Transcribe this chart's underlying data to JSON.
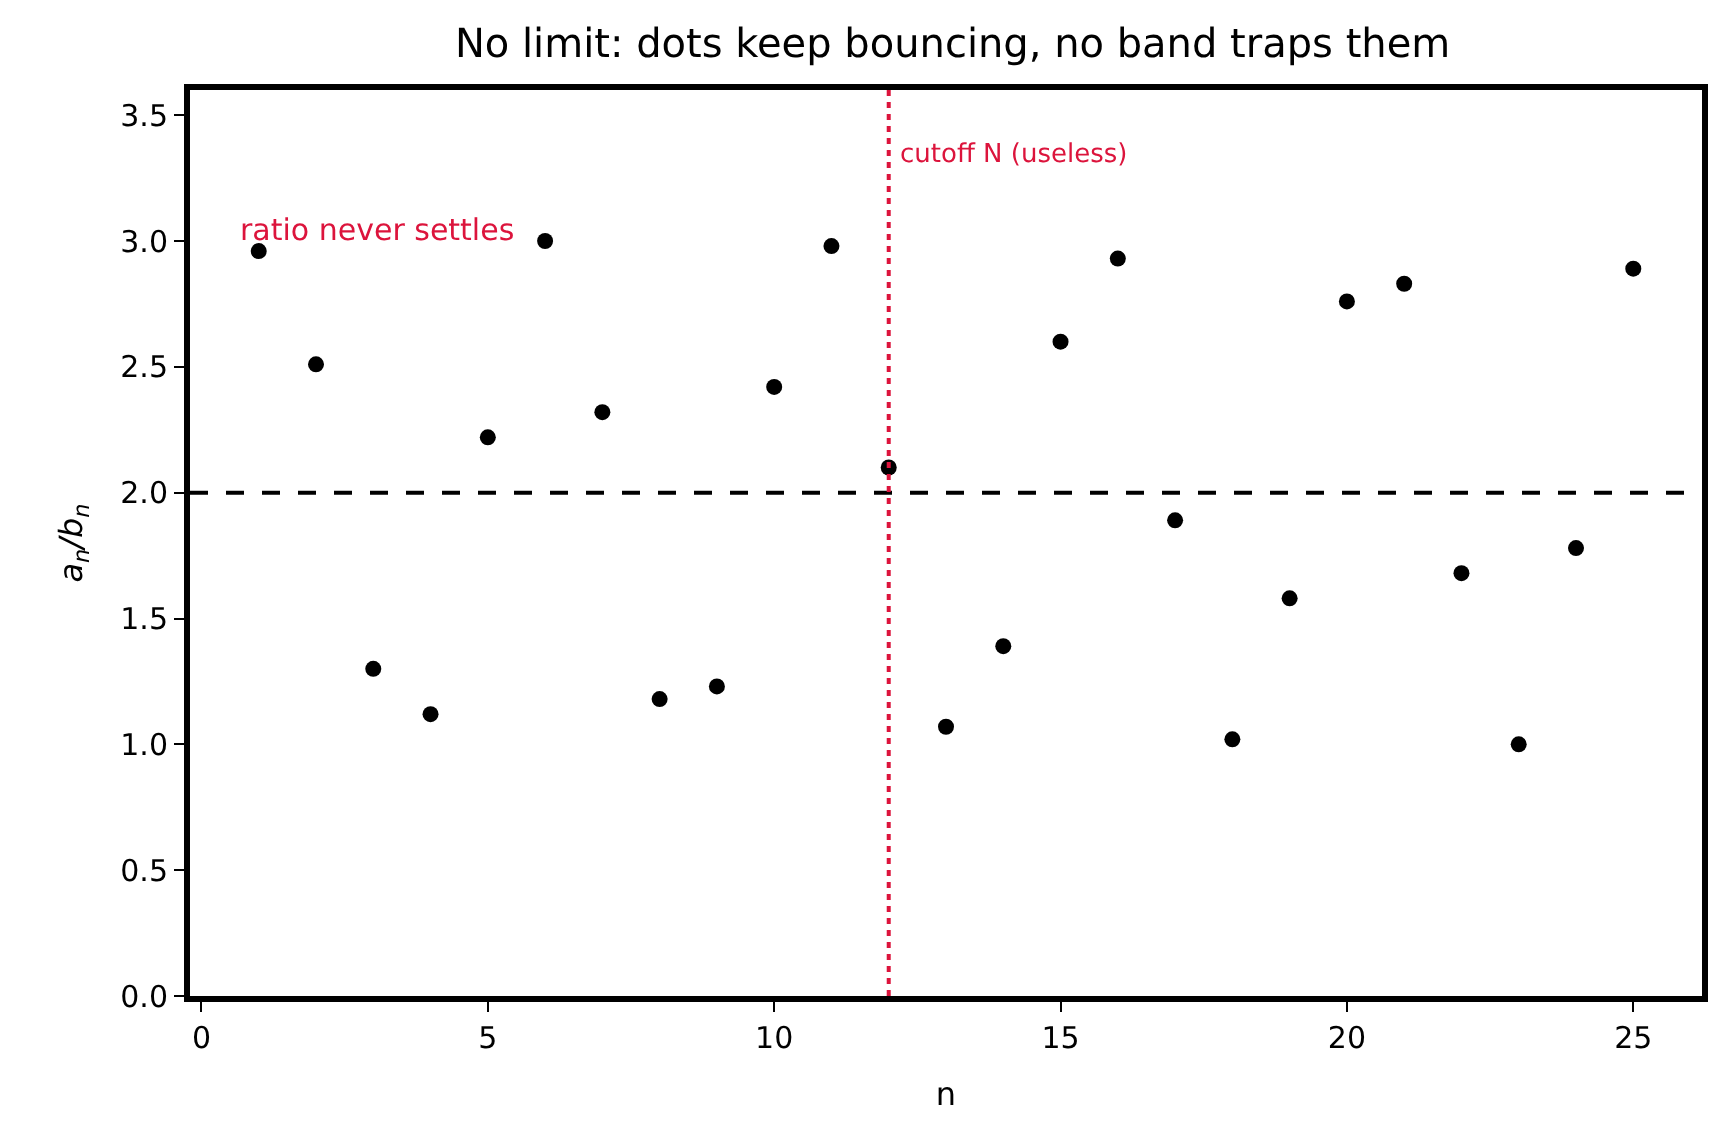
{
  "chart_data": {
    "type": "scatter",
    "title": "No limit: dots keep bouncing, no band traps them",
    "xlabel": "n",
    "ylabel": "a$_{n}$/b$_{n}$",
    "x": [
      1,
      2,
      3,
      4,
      5,
      6,
      7,
      8,
      9,
      10,
      11,
      12,
      13,
      14,
      15,
      16,
      17,
      18,
      19,
      20,
      21,
      22,
      23,
      24,
      25
    ],
    "series": [
      {
        "color": "#000000",
        "values": [
          2.96,
          2.51,
          1.3,
          1.12,
          2.22,
          3.0,
          2.32,
          1.18,
          1.23,
          2.42,
          2.98,
          2.1,
          1.07,
          1.39,
          2.6,
          2.93,
          1.89,
          1.02,
          1.58,
          2.76,
          2.83,
          1.68,
          1.0,
          1.78,
          2.89
        ]
      }
    ],
    "xlim": [
      -0.2,
      26.2
    ],
    "ylim": [
      0,
      3.6
    ],
    "xticks": [
      0,
      5,
      10,
      15,
      20,
      25
    ],
    "yticks": [
      {
        "value": 0,
        "label": "0.0"
      },
      0.5,
      {
        "value": 1,
        "label": "1.0"
      },
      1.5,
      {
        "value": 2,
        "label": "2.0"
      },
      2.5,
      {
        "value": 3,
        "label": "3.0"
      },
      3.5
    ],
    "ref_lines": [
      {
        "axis": "y",
        "value": 2,
        "color": "#000000",
        "line_style": "dashed"
      },
      {
        "axis": "x",
        "value": 12,
        "color": "#dc143c",
        "line_style": "dotted",
        "label": "cutoff N (useless)"
      }
    ],
    "annotations": [
      "ratio never settles"
    ],
    "marker": "circle",
    "legend": false
  }
}
